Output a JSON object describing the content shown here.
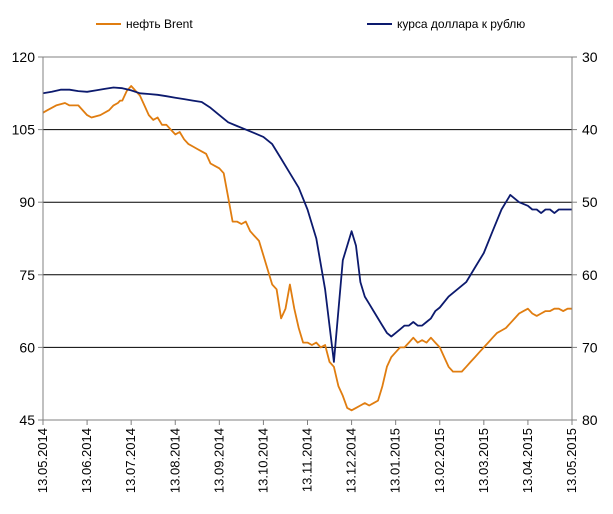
{
  "chart_data": {
    "type": "line",
    "title": "",
    "grid": "horizontal",
    "legend_position": "top",
    "colors": {
      "brent": "#E07D10",
      "usd": "#0C1A6E",
      "grid": "#000000"
    },
    "y_left": {
      "min": 45,
      "max": 120,
      "ticks": [
        "120",
        "105",
        "90",
        "75",
        "60",
        "45"
      ]
    },
    "y_right": {
      "min": 30,
      "max": 80,
      "inverted": true,
      "ticks": [
        "30",
        "40",
        "50",
        "60",
        "70",
        "80"
      ]
    },
    "x_ticks": [
      "13.05.2014",
      "13.06.2014",
      "13.07.2014",
      "13.08.2014",
      "13.09.2014",
      "13.10.2014",
      "13.11.2014",
      "13.12.2014",
      "13.01.2015",
      "13.02.2015",
      "13.03.2015",
      "13.04.2015",
      "13.05.2015"
    ],
    "series": [
      {
        "name": "нефть Brent",
        "axis": "left",
        "x": [
          0,
          0.1,
          0.2,
          0.3,
          0.5,
          0.6,
          0.8,
          1.0,
          1.1,
          1.3,
          1.5,
          1.6,
          1.7,
          1.75,
          1.8,
          1.9,
          2.0,
          2.1,
          2.2,
          2.3,
          2.4,
          2.5,
          2.6,
          2.7,
          2.8,
          2.9,
          3.0,
          3.1,
          3.2,
          3.3,
          3.4,
          3.5,
          3.6,
          3.7,
          3.8,
          3.9,
          4.0,
          4.1,
          4.2,
          4.3,
          4.4,
          4.5,
          4.6,
          4.7,
          4.8,
          4.9,
          5.0,
          5.1,
          5.2,
          5.3,
          5.4,
          5.5,
          5.6,
          5.7,
          5.8,
          5.9,
          6.0,
          6.1,
          6.2,
          6.3,
          6.4,
          6.5,
          6.6,
          6.7,
          6.8,
          6.9,
          7.0,
          7.1,
          7.2,
          7.3,
          7.4,
          7.5,
          7.6,
          7.7,
          7.8,
          7.9,
          8.0,
          8.1,
          8.2,
          8.3,
          8.4,
          8.5,
          8.6,
          8.7,
          8.8,
          8.9,
          9.0,
          9.1,
          9.2,
          9.3,
          9.4,
          9.5,
          9.6,
          9.7,
          9.8,
          9.9,
          10.0,
          10.1,
          10.2,
          10.3,
          10.4,
          10.5,
          10.6,
          10.7,
          10.8,
          10.9,
          11.0,
          11.1,
          11.2,
          11.3,
          11.4,
          11.5,
          11.6,
          11.7,
          11.8,
          11.9,
          12.0
        ],
        "values": [
          108.5,
          109,
          109.5,
          110,
          110.5,
          110,
          110,
          108,
          107.5,
          108,
          109,
          110,
          110.5,
          111,
          111,
          113,
          114,
          113,
          112,
          110,
          108,
          107,
          107.5,
          106,
          106,
          105,
          104,
          104.5,
          103,
          102,
          101.5,
          101,
          100.5,
          100,
          98,
          97.5,
          97,
          96,
          91,
          86,
          86,
          85.5,
          86,
          84,
          83,
          82,
          79,
          76,
          73,
          72,
          66,
          68,
          73,
          68,
          64,
          61,
          61,
          60.5,
          61,
          60,
          60.5,
          57,
          56,
          52,
          50,
          47.5,
          47,
          47.5,
          48,
          48.5,
          48,
          48.5,
          49,
          52,
          56,
          58,
          59,
          60,
          60,
          61,
          62,
          61,
          61.5,
          61,
          62,
          61,
          60,
          58,
          56,
          55,
          55,
          55,
          56,
          57,
          58,
          59,
          60,
          61,
          62,
          63,
          63.5,
          64,
          65,
          66,
          67,
          67.5,
          68,
          67,
          66.5,
          67,
          67.5,
          67.5,
          68,
          68,
          67.5,
          68,
          68
        ],
        "color": "#E07D10"
      },
      {
        "name": "курса доллара к рублю",
        "axis": "right",
        "x": [
          0,
          0.2,
          0.4,
          0.6,
          0.8,
          1.0,
          1.2,
          1.4,
          1.6,
          1.8,
          2.0,
          2.2,
          2.4,
          2.6,
          2.8,
          3.0,
          3.2,
          3.4,
          3.6,
          3.8,
          4.0,
          4.2,
          4.4,
          4.6,
          4.8,
          5.0,
          5.2,
          5.4,
          5.6,
          5.8,
          6.0,
          6.2,
          6.4,
          6.6,
          6.8,
          7.0,
          7.1,
          7.2,
          7.3,
          7.4,
          7.5,
          7.6,
          7.7,
          7.8,
          7.9,
          8.0,
          8.1,
          8.2,
          8.3,
          8.4,
          8.5,
          8.6,
          8.7,
          8.8,
          8.9,
          9.0,
          9.2,
          9.4,
          9.6,
          9.8,
          10.0,
          10.2,
          10.4,
          10.6,
          10.8,
          11.0,
          11.1,
          11.2,
          11.3,
          11.4,
          11.5,
          11.6,
          11.7,
          11.8,
          11.9,
          12.0
        ],
        "values": [
          35,
          34.8,
          34.5,
          34.5,
          34.7,
          34.8,
          34.6,
          34.4,
          34.2,
          34.3,
          34.6,
          35,
          35.1,
          35.2,
          35.4,
          35.6,
          35.8,
          36,
          36.2,
          37,
          38,
          39,
          39.5,
          40,
          40.5,
          41,
          42,
          44,
          46,
          48,
          51,
          55,
          62,
          72,
          58,
          54,
          56,
          61,
          63,
          64,
          65,
          66,
          67,
          68,
          68.5,
          68,
          67.5,
          67,
          67,
          66.5,
          67,
          67,
          66.5,
          66,
          65,
          64.5,
          63,
          62,
          61,
          59,
          57,
          54,
          51,
          49,
          50,
          50.5,
          51,
          51,
          51.5,
          51,
          51,
          51.5,
          51,
          51,
          51,
          51
        ],
        "color": "#0C1A6E"
      }
    ]
  }
}
